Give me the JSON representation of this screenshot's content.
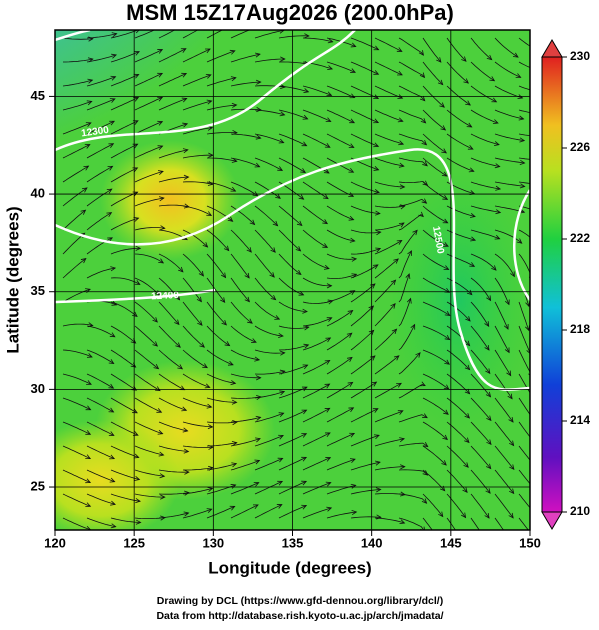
{
  "title": "MSM 15Z17Aug2026 (200.0hPa)",
  "x_axis": {
    "label": "Longitude (degrees)",
    "range": [
      120,
      150
    ],
    "ticks": [
      120,
      125,
      130,
      135,
      140,
      145,
      150
    ]
  },
  "y_axis": {
    "label": "Latitude  (degrees)",
    "range": [
      22.8,
      48.4
    ],
    "ticks": [
      25,
      30,
      35,
      40,
      45
    ]
  },
  "colorbar": {
    "range": [
      210,
      230
    ],
    "ticks": [
      210,
      214,
      218,
      222,
      226,
      230
    ]
  },
  "contour_labels": [
    "12300",
    "12400",
    "12500"
  ],
  "credits": [
    "Drawing by DCL (https://www.gfd-dennou.org/library/dcl/)",
    "Data from http://database.rish.kyoto-u.ac.jp/arch/jmadata/"
  ]
}
